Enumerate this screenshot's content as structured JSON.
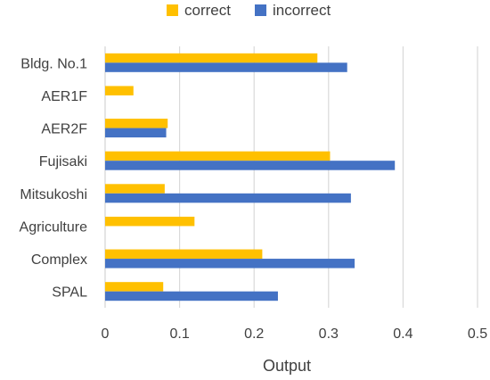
{
  "chart_data": {
    "type": "bar",
    "orientation": "horizontal",
    "categories": [
      "Bldg. No.1",
      "AER1F",
      "AER2F",
      "Fujisaki",
      "Mitsukoshi",
      "Agriculture",
      "Complex",
      "SPAL"
    ],
    "series": [
      {
        "name": "correct",
        "color": "#FFC000",
        "values": [
          0.285,
          0.038,
          0.084,
          0.302,
          0.08,
          0.12,
          0.211,
          0.078
        ]
      },
      {
        "name": "incorrect",
        "color": "#4472C4",
        "values": [
          0.325,
          null,
          0.082,
          0.389,
          0.33,
          null,
          0.335,
          0.232
        ]
      }
    ],
    "xlabel": "Output",
    "ylabel": "",
    "xlim": [
      0,
      0.5
    ],
    "xticks": [
      0,
      0.1,
      0.2,
      0.3,
      0.4,
      0.5
    ],
    "xtick_labels": [
      "0",
      "0.1",
      "0.2",
      "0.3",
      "0.4",
      "0.5"
    ],
    "grid": "vertical",
    "legend": "top-center"
  }
}
